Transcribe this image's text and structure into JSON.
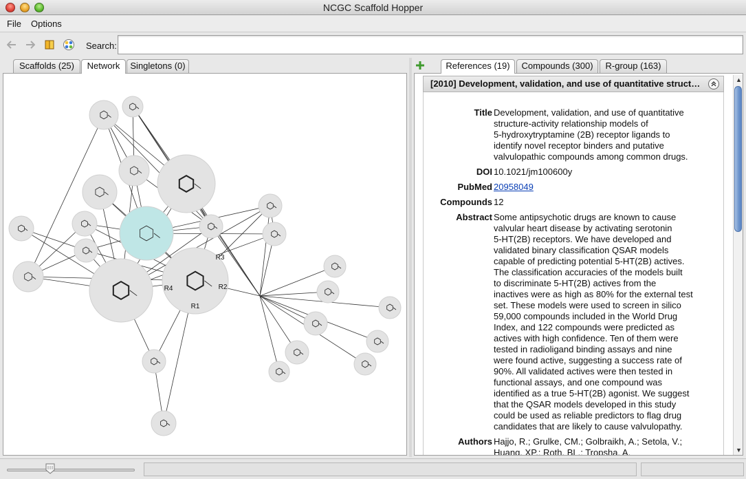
{
  "window": {
    "title": "NCGC Scaffold Hopper"
  },
  "menu": {
    "file": "File",
    "options": "Options"
  },
  "toolbar": {
    "search_label": "Search:",
    "search_value": "",
    "search_placeholder": ""
  },
  "left_tabs": [
    {
      "label": "Scaffolds (25)"
    },
    {
      "label": "Network"
    },
    {
      "label": "Singletons (0)"
    }
  ],
  "right_tabs": [
    {
      "label": "References (19)"
    },
    {
      "label": "Compounds (300)"
    },
    {
      "label": "R-group (163)"
    }
  ],
  "network": {
    "labels": [
      "R1",
      "R2",
      "R3",
      "R4"
    ],
    "highlight_color": "#bfe6e6",
    "node_color": "#e3e3e3"
  },
  "reference": {
    "header": "[2010] Development, validation, and use of quantitative struct…",
    "title_label": "Title",
    "title_lines": [
      "Development, validation, and use of quantitative",
      "structure-activity relationship models of",
      "5-hydroxytryptamine (2B) receptor ligands to",
      "identify novel receptor binders and putative",
      "valvulopathic compounds among common drugs."
    ],
    "doi_label": "DOI",
    "doi": "10.1021/jm100600y",
    "pubmed_label": "PubMed",
    "pubmed": "20958049",
    "compounds_label": "Compounds",
    "compounds": "12",
    "abstract_label": "Abstract",
    "abstract_lines": [
      "Some antipsychotic drugs are known to cause",
      "valvular heart disease by activating serotonin",
      "5-HT(2B) receptors. We have developed and",
      "validated binary classification QSAR models",
      "capable of predicting potential 5-HT(2B) actives.",
      "The classification accuracies of the models built",
      "to discriminate 5-HT(2B) actives from the",
      "inactives were as high as 80% for the external test",
      "set. These models were used to screen in silico",
      "59,000 compounds included in the World Drug",
      "Index, and 122 compounds were predicted as",
      "actives with high confidence. Ten of them were",
      "tested in radioligand binding assays and nine",
      "were found active, suggesting a success rate of",
      "90%. All validated actives were then tested in",
      "functional assays, and one compound was",
      "identified as a true 5-HT(2B) agonist. We suggest",
      "that the QSAR models developed in this study",
      "could be used as reliable predictors to flag drug",
      "candidates that are likely to cause valvulopathy."
    ],
    "authors_label": "Authors",
    "authors_lines": [
      "Hajjo, R.; Grulke, CM.; Golbraikh, A.; Setola, V.;",
      "Huang, XP.; Roth, BL.; Tropsha, A."
    ]
  },
  "status": {
    "zoom_fraction": 0.34
  },
  "colors": {
    "link": "#0a3fb5",
    "accent": "#5b86c4"
  }
}
